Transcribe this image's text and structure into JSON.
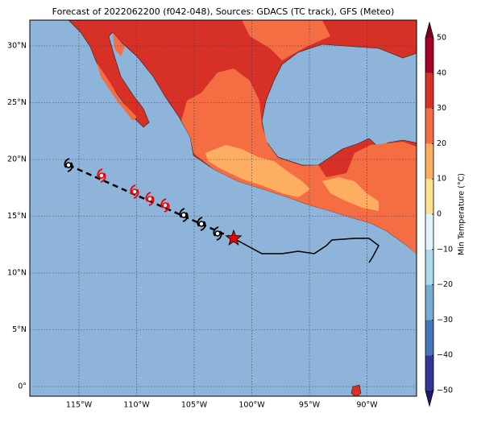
{
  "title": "Forecast of 2022062200 (f042-048), Sources: GDACS (TC track), GFS (Meteo)",
  "map": {
    "lon_ticks": [
      {
        "value": -115,
        "label": "115°W"
      },
      {
        "value": -110,
        "label": "110°W"
      },
      {
        "value": -105,
        "label": "105°W"
      },
      {
        "value": -100,
        "label": "100°W"
      },
      {
        "value": -95,
        "label": "95°W"
      },
      {
        "value": -90,
        "label": "90°W"
      }
    ],
    "lat_ticks": [
      {
        "value": 30,
        "label": "30°N"
      },
      {
        "value": 25,
        "label": "25°N"
      },
      {
        "value": 20,
        "label": "20°N"
      },
      {
        "value": 15,
        "label": "15°N"
      },
      {
        "value": 10,
        "label": "10°N"
      },
      {
        "value": 5,
        "label": "5°N"
      },
      {
        "value": 0,
        "label": "0°"
      }
    ]
  },
  "colorbar": {
    "label": "Min Temperature (°C)",
    "ticks": [
      50,
      40,
      30,
      20,
      10,
      0,
      {
        "value": -10,
        "label": "−10"
      },
      {
        "value": -20,
        "label": "−20"
      },
      {
        "value": -30,
        "label": "−30"
      },
      {
        "value": -40,
        "label": "−40"
      },
      {
        "value": -50,
        "label": "−50"
      }
    ],
    "colors": [
      "#313695",
      "#4575b4",
      "#74add1",
      "#abd9e9",
      "#e0f3f8",
      "#fee090",
      "#fdae61",
      "#f46d43",
      "#d73027",
      "#a50026"
    ],
    "under_color": "#1c1a6b",
    "over_color": "#7a0020"
  }
}
